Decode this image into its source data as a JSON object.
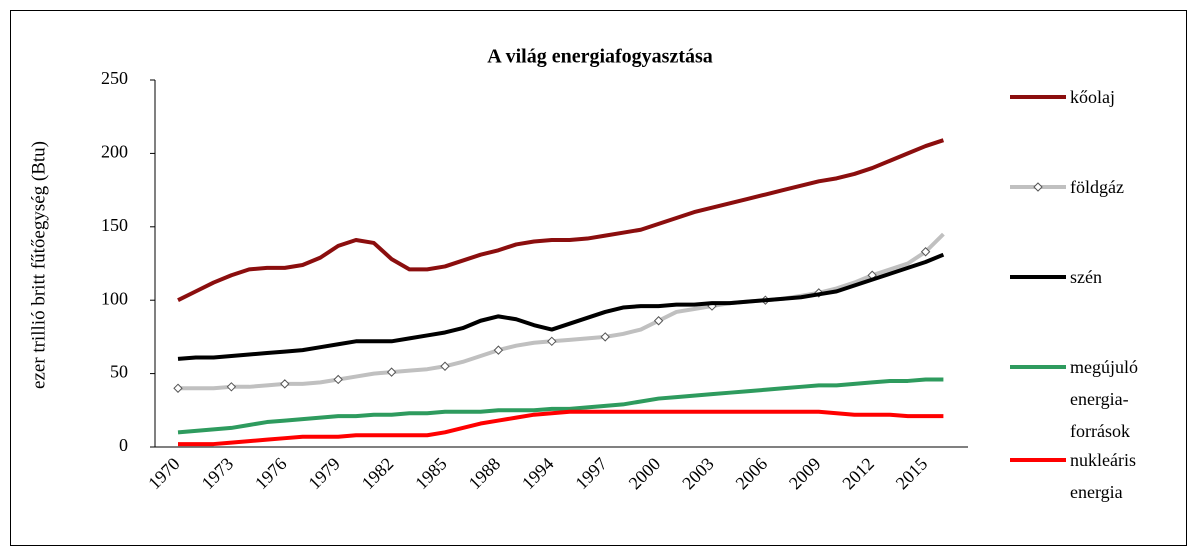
{
  "chart_data": {
    "type": "line",
    "title": "A világ energiafogyasztása",
    "y_label": "ezer trillió britt fűtőegység (Btu)",
    "categories": [
      "1970",
      null,
      null,
      "1973",
      null,
      null,
      "1976",
      null,
      null,
      "1979",
      null,
      null,
      "1982",
      null,
      null,
      "1985",
      null,
      null,
      "1988",
      null,
      null,
      "1994",
      null,
      null,
      "1997",
      null,
      null,
      "2000",
      null,
      null,
      "2003",
      null,
      null,
      "2006",
      null,
      null,
      "2009",
      null,
      null,
      "2012",
      null,
      null,
      "2015",
      null
    ],
    "ylim": [
      0,
      250
    ],
    "yticks": [
      0,
      50,
      100,
      150,
      200,
      250
    ],
    "grid": false,
    "series": [
      {
        "name": "kőolaj",
        "color": "#8b0e0e",
        "values": [
          100,
          106,
          112,
          117,
          121,
          122,
          122,
          124,
          129,
          137,
          141,
          139,
          128,
          121,
          121,
          123,
          127,
          131,
          134,
          138,
          140,
          141,
          141,
          142,
          144,
          146,
          148,
          152,
          156,
          160,
          163,
          166,
          169,
          172,
          175,
          178,
          181,
          183,
          186,
          190,
          195,
          200,
          205,
          209
        ]
      },
      {
        "name": "földgáz",
        "color": "#c0c0c0",
        "marker": "diamond",
        "values": [
          40,
          40,
          40,
          41,
          41,
          42,
          43,
          43,
          44,
          46,
          48,
          50,
          51,
          52,
          53,
          55,
          58,
          62,
          66,
          69,
          71,
          72,
          73,
          74,
          75,
          77,
          80,
          86,
          92,
          94,
          96,
          98,
          99,
          100,
          101,
          103,
          105,
          108,
          112,
          117,
          121,
          125,
          133,
          145
        ]
      },
      {
        "name": "szén",
        "color": "#000000",
        "values": [
          60,
          61,
          61,
          62,
          63,
          64,
          65,
          66,
          68,
          70,
          72,
          72,
          72,
          74,
          76,
          78,
          81,
          86,
          89,
          87,
          83,
          80,
          84,
          88,
          92,
          95,
          96,
          96,
          97,
          97,
          98,
          98,
          99,
          100,
          101,
          102,
          104,
          106,
          110,
          114,
          118,
          122,
          126,
          131
        ]
      },
      {
        "name": "megújuló energia-források",
        "color": "#2e9b5e",
        "values": [
          10,
          11,
          12,
          13,
          15,
          17,
          18,
          19,
          20,
          21,
          21,
          22,
          22,
          23,
          23,
          24,
          24,
          24,
          25,
          25,
          25,
          26,
          26,
          27,
          28,
          29,
          31,
          33,
          34,
          35,
          36,
          37,
          38,
          39,
          40,
          41,
          42,
          42,
          43,
          44,
          45,
          45,
          46,
          46
        ]
      },
      {
        "name": "nukleáris energia",
        "color": "#ff0000",
        "values": [
          2,
          2,
          2,
          3,
          4,
          5,
          6,
          7,
          7,
          7,
          8,
          8,
          8,
          8,
          8,
          10,
          13,
          16,
          18,
          20,
          22,
          23,
          24,
          24,
          24,
          24,
          24,
          24,
          24,
          24,
          24,
          24,
          24,
          24,
          24,
          24,
          24,
          23,
          22,
          22,
          22,
          21,
          21,
          21
        ]
      }
    ]
  }
}
